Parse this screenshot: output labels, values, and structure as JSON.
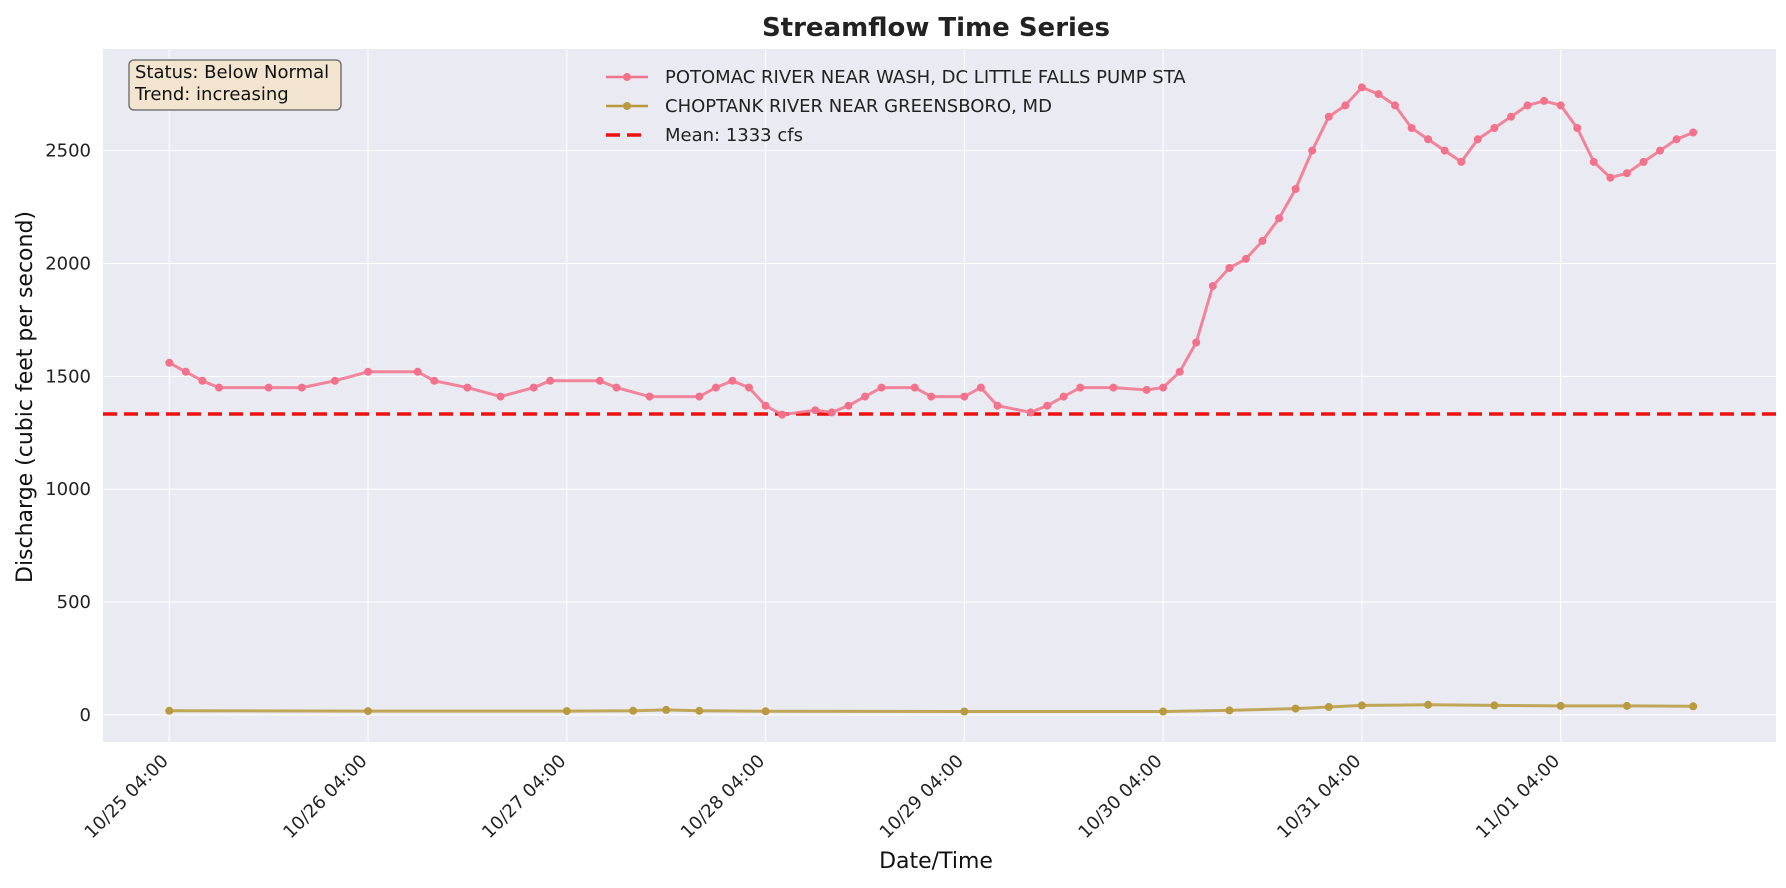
{
  "chart_data": {
    "type": "line",
    "title": "Streamflow Time Series",
    "xlabel": "Date/Time",
    "ylabel": "Discharge (cubic feet per second)",
    "x_ticks": [
      "10/25 04:00",
      "10/26 04:00",
      "10/27 04:00",
      "10/28 04:00",
      "10/29 04:00",
      "10/30 04:00",
      "10/31 04:00",
      "11/01 04:00"
    ],
    "y_ticks": [
      0,
      500,
      1000,
      1500,
      2000,
      2500
    ],
    "xlim": [
      "10/24 20:00",
      "11/02 06:00"
    ],
    "ylim": [
      -120,
      2950
    ],
    "grid": true,
    "legend_position": "top-center",
    "series": [
      {
        "name": "POTOMAC RIVER NEAR WASH, DC LITTLE FALLS PUMP STA",
        "color": "#f2728c",
        "points": [
          [
            "10/25 04:00",
            1560
          ],
          [
            "10/25 06:00",
            1520
          ],
          [
            "10/25 08:00",
            1480
          ],
          [
            "10/25 10:00",
            1450
          ],
          [
            "10/25 16:00",
            1450
          ],
          [
            "10/25 20:00",
            1450
          ],
          [
            "10/26 00:00",
            1480
          ],
          [
            "10/26 04:00",
            1520
          ],
          [
            "10/26 10:00",
            1520
          ],
          [
            "10/26 12:00",
            1480
          ],
          [
            "10/26 16:00",
            1450
          ],
          [
            "10/26 20:00",
            1410
          ],
          [
            "10/27 00:00",
            1450
          ],
          [
            "10/27 02:00",
            1480
          ],
          [
            "10/27 08:00",
            1480
          ],
          [
            "10/27 10:00",
            1450
          ],
          [
            "10/27 14:00",
            1410
          ],
          [
            "10/27 20:00",
            1410
          ],
          [
            "10/27 22:00",
            1450
          ],
          [
            "10/28 00:00",
            1480
          ],
          [
            "10/28 02:00",
            1450
          ],
          [
            "10/28 04:00",
            1370
          ],
          [
            "10/28 06:00",
            1330
          ],
          [
            "10/28 10:00",
            1350
          ],
          [
            "10/28 12:00",
            1340
          ],
          [
            "10/28 14:00",
            1370
          ],
          [
            "10/28 16:00",
            1410
          ],
          [
            "10/28 18:00",
            1450
          ],
          [
            "10/28 22:00",
            1450
          ],
          [
            "10/29 00:00",
            1410
          ],
          [
            "10/29 04:00",
            1410
          ],
          [
            "10/29 06:00",
            1450
          ],
          [
            "10/29 08:00",
            1370
          ],
          [
            "10/29 12:00",
            1340
          ],
          [
            "10/29 14:00",
            1370
          ],
          [
            "10/29 16:00",
            1410
          ],
          [
            "10/29 18:00",
            1450
          ],
          [
            "10/29 22:00",
            1450
          ],
          [
            "10/30 02:00",
            1440
          ],
          [
            "10/30 04:00",
            1450
          ],
          [
            "10/30 06:00",
            1520
          ],
          [
            "10/30 08:00",
            1650
          ],
          [
            "10/30 10:00",
            1900
          ],
          [
            "10/30 12:00",
            1980
          ],
          [
            "10/30 14:00",
            2020
          ],
          [
            "10/30 16:00",
            2100
          ],
          [
            "10/30 18:00",
            2200
          ],
          [
            "10/30 20:00",
            2330
          ],
          [
            "10/30 22:00",
            2500
          ],
          [
            "10/31 00:00",
            2650
          ],
          [
            "10/31 02:00",
            2700
          ],
          [
            "10/31 04:00",
            2780
          ],
          [
            "10/31 06:00",
            2750
          ],
          [
            "10/31 08:00",
            2700
          ],
          [
            "10/31 10:00",
            2600
          ],
          [
            "10/31 12:00",
            2550
          ],
          [
            "10/31 14:00",
            2500
          ],
          [
            "10/31 16:00",
            2450
          ],
          [
            "10/31 18:00",
            2550
          ],
          [
            "10/31 20:00",
            2600
          ],
          [
            "10/31 22:00",
            2650
          ],
          [
            "11/01 00:00",
            2700
          ],
          [
            "11/01 02:00",
            2720
          ],
          [
            "11/01 04:00",
            2700
          ],
          [
            "11/01 06:00",
            2600
          ],
          [
            "11/01 08:00",
            2450
          ],
          [
            "11/01 10:00",
            2380
          ],
          [
            "11/01 12:00",
            2400
          ],
          [
            "11/01 14:00",
            2450
          ],
          [
            "11/01 16:00",
            2500
          ],
          [
            "11/01 18:00",
            2550
          ],
          [
            "11/01 20:00",
            2580
          ]
        ]
      },
      {
        "name": "CHOPTANK RIVER NEAR GREENSBORO, MD",
        "color": "#b99a3e",
        "points": [
          [
            "10/25 04:00",
            18
          ],
          [
            "10/26 04:00",
            17
          ],
          [
            "10/27 04:00",
            17
          ],
          [
            "10/27 12:00",
            18
          ],
          [
            "10/27 16:00",
            22
          ],
          [
            "10/27 20:00",
            18
          ],
          [
            "10/28 04:00",
            16
          ],
          [
            "10/29 04:00",
            15
          ],
          [
            "10/30 04:00",
            15
          ],
          [
            "10/30 12:00",
            20
          ],
          [
            "10/30 20:00",
            28
          ],
          [
            "10/31 00:00",
            35
          ],
          [
            "10/31 04:00",
            42
          ],
          [
            "10/31 12:00",
            45
          ],
          [
            "10/31 20:00",
            42
          ],
          [
            "11/01 04:00",
            40
          ],
          [
            "11/01 12:00",
            40
          ],
          [
            "11/01 20:00",
            38
          ]
        ]
      }
    ],
    "mean_line": {
      "label": "Mean: 1333 cfs",
      "value": 1333,
      "color": "#ee1111"
    }
  },
  "status_box": {
    "status": "Status: Below Normal",
    "trend": "Trend: increasing"
  }
}
